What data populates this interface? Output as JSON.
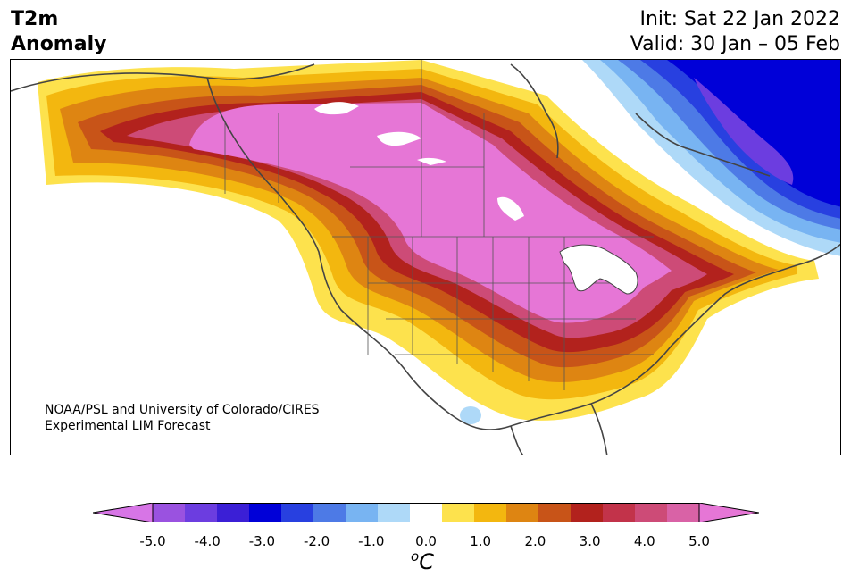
{
  "title": {
    "line1": "T2m",
    "line2": "Anomaly"
  },
  "header": {
    "init": "Init: Sat 22 Jan 2022",
    "valid": "Valid: 30 Jan – 05 Feb"
  },
  "credit": {
    "line1": "NOAA/PSL and University of Colorado/CIRES",
    "line2": "Experimental LIM Forecast"
  },
  "colorbar": {
    "unit_base": "C",
    "unit_sup": "o",
    "ticks": [
      "-5.0",
      "-4.0",
      "-3.0",
      "-2.0",
      "-1.0",
      "0.0",
      "1.0",
      "2.0",
      "3.0",
      "4.0",
      "5.0"
    ],
    "levels": [
      -5.0,
      -4.5,
      -4.0,
      -3.5,
      -3.0,
      -2.5,
      -2.0,
      -1.5,
      -1.0,
      -0.5,
      0.5,
      1.0,
      1.5,
      2.0,
      2.5,
      3.0,
      3.5,
      4.0,
      4.5,
      5.0
    ],
    "colors": [
      "#d775e6",
      "#9a52e0",
      "#6c3de0",
      "#3b1fd6",
      "#0000d8",
      "#2840e0",
      "#4d7ae6",
      "#78b4f2",
      "#aed9f8",
      "#ffffff",
      "#fde24d",
      "#f3b70f",
      "#de8512",
      "#c85418",
      "#b2221d",
      "#c2334a",
      "#cd4b77",
      "#d962a6",
      "#e676d6"
    ]
  },
  "map": {
    "region": "North America",
    "variable": "2m temperature anomaly"
  }
}
